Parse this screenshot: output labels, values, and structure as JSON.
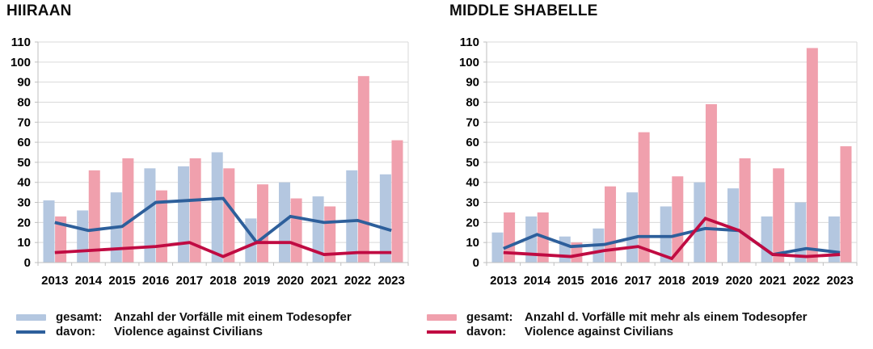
{
  "colors": {
    "bar_single": "#b4c7e0",
    "bar_multi": "#f0a0ad",
    "line_single": "#2d5f9b",
    "line_multi": "#c00b42",
    "grid": "#d9d9d9",
    "axis": "#bfbfbf"
  },
  "chart_data": [
    {
      "type": "bar",
      "title": "HIIRAAN",
      "categories": [
        "2013",
        "2014",
        "2015",
        "2016",
        "2017",
        "2018",
        "2019",
        "2020",
        "2021",
        "2022",
        "2023"
      ],
      "y_axis": {
        "min": 0,
        "max": 110,
        "step": 10
      },
      "grid": true,
      "bar_series": [
        {
          "id": "gesamt-einem-todesopfer",
          "color": "#b4c7e0",
          "name": "gesamt: Anzahl der Vorfälle mit einem Todesopfer",
          "values": [
            31,
            26,
            35,
            47,
            48,
            55,
            22,
            40,
            33,
            46,
            44
          ]
        },
        {
          "id": "gesamt-mehr-als-einem-todesopfer",
          "color": "#f0a0ad",
          "name": "gesamt: Anzahl d. Vorfälle mit mehr als einem Todesopfer",
          "values": [
            23,
            46,
            52,
            36,
            52,
            47,
            39,
            32,
            28,
            93,
            61
          ]
        }
      ],
      "line_series": [
        {
          "id": "davon-vac-einem",
          "color": "#2d5f9b",
          "name": "davon: Violence against Civilians",
          "values": [
            20,
            16,
            18,
            30,
            31,
            32,
            10,
            23,
            20,
            21,
            16
          ]
        },
        {
          "id": "davon-vac-mehr",
          "color": "#c00b42",
          "name": "davon: Violence against Civilians",
          "values": [
            5,
            6,
            7,
            8,
            10,
            3,
            10,
            10,
            4,
            5,
            5
          ]
        }
      ]
    },
    {
      "type": "bar",
      "title": "MIDDLE SHABELLE",
      "categories": [
        "2013",
        "2014",
        "2015",
        "2016",
        "2017",
        "2018",
        "2019",
        "2020",
        "2021",
        "2022",
        "2023"
      ],
      "y_axis": {
        "min": 0,
        "max": 110,
        "step": 10
      },
      "grid": true,
      "bar_series": [
        {
          "id": "gesamt-einem-todesopfer",
          "color": "#b4c7e0",
          "name": "gesamt: Anzahl der Vorfälle mit einem Todesopfer",
          "values": [
            15,
            23,
            13,
            17,
            35,
            28,
            40,
            37,
            23,
            30,
            23
          ]
        },
        {
          "id": "gesamt-mehr-als-einem-todesopfer",
          "color": "#f0a0ad",
          "name": "gesamt: Anzahl d. Vorfälle mit mehr als einem Todesopfer",
          "values": [
            25,
            25,
            10,
            38,
            65,
            43,
            79,
            52,
            47,
            107,
            58
          ]
        }
      ],
      "line_series": [
        {
          "id": "davon-vac-einem",
          "color": "#2d5f9b",
          "name": "davon: Violence against Civilians",
          "values": [
            7,
            14,
            8,
            9,
            13,
            13,
            17,
            16,
            4,
            7,
            5
          ]
        },
        {
          "id": "davon-vac-mehr",
          "color": "#c00b42",
          "name": "davon: Violence against Civilians",
          "values": [
            5,
            4,
            3,
            6,
            8,
            2,
            22,
            16,
            4,
            3,
            4
          ]
        }
      ]
    }
  ],
  "legends": [
    {
      "rows": [
        {
          "swatch": "bar",
          "prefix": "gesamt:",
          "label": "Anzahl der Vorfälle mit einem Todesopfer"
        },
        {
          "swatch": "line",
          "prefix": "davon:",
          "label": "Violence against Civilians"
        }
      ]
    },
    {
      "rows": [
        {
          "swatch": "bar",
          "prefix": "gesamt:",
          "label": "Anzahl d. Vorfälle mit mehr als einem Todesopfer"
        },
        {
          "swatch": "line",
          "prefix": "davon:",
          "label": "Violence against Civilians"
        }
      ]
    }
  ]
}
